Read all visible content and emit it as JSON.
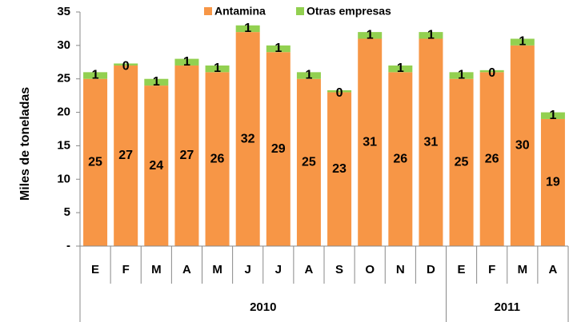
{
  "chart_data": {
    "type": "stacked_bar",
    "ylabel": "Miles de toneladas",
    "categories": [
      "E",
      "F",
      "M",
      "A",
      "M",
      "J",
      "J",
      "A",
      "S",
      "O",
      "N",
      "D",
      "E",
      "F",
      "M",
      "A"
    ],
    "x_groups": [
      {
        "label": "2010",
        "count": 12
      },
      {
        "label": "2011",
        "count": 4
      }
    ],
    "series": [
      {
        "name": "Antamina",
        "color": "#f79646",
        "values": [
          25,
          27,
          24,
          27,
          26,
          32,
          29,
          25,
          23,
          31,
          26,
          31,
          25,
          26,
          30,
          19
        ]
      },
      {
        "name": "Otras empresas",
        "color": "#92d050",
        "values": [
          1,
          0.3,
          1,
          1,
          1,
          1,
          1,
          1,
          0.3,
          1,
          1,
          1,
          1,
          0.3,
          1,
          1
        ],
        "value_labels": [
          "1",
          "0",
          "1",
          "1",
          "1",
          "1",
          "1",
          "1",
          "0",
          "1",
          "1",
          "1",
          "1",
          "0",
          "1",
          "1"
        ]
      }
    ],
    "ylim": [
      0,
      35
    ],
    "yticks": [
      {
        "value": 0,
        "label": "-"
      },
      5,
      10,
      15,
      20,
      25,
      30,
      35
    ],
    "legend": "top"
  }
}
